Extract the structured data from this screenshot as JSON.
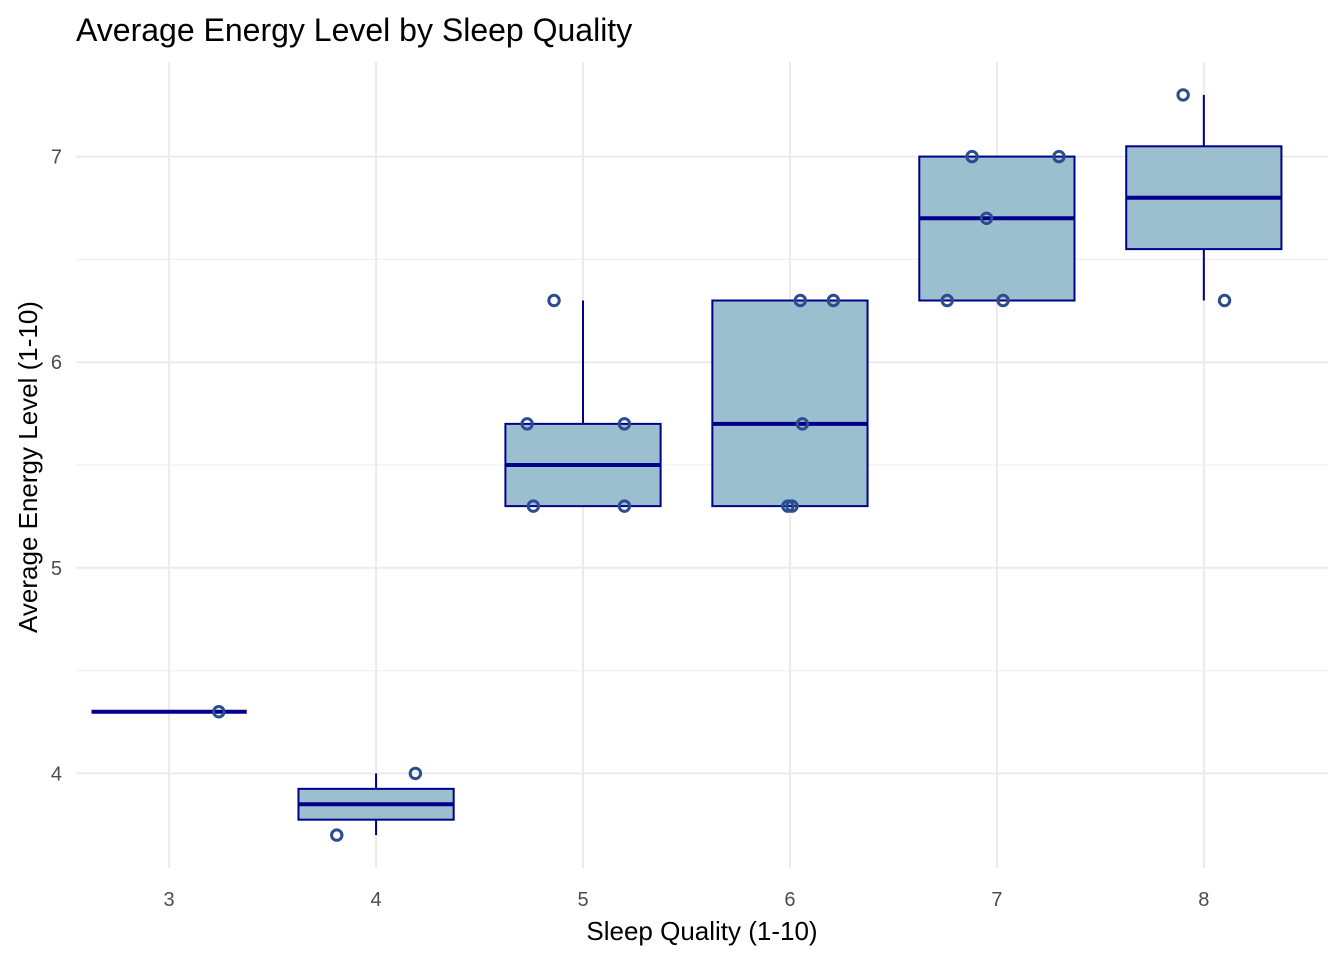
{
  "chart_data": {
    "type": "box",
    "title": "Average Energy Level by Sleep Quality",
    "xlabel": "Sleep Quality (1-10)",
    "ylabel": "Average Energy Level (1-10)",
    "x_ticks": [
      "3",
      "4",
      "5",
      "6",
      "7",
      "8"
    ],
    "y_ticks": [
      "4",
      "5",
      "6",
      "7"
    ],
    "xlim": [
      2.55,
      8.6
    ],
    "ylim": [
      3.54,
      7.46
    ],
    "grid": true,
    "legend": "none",
    "colors": {
      "box_fill": "#9bbfcf",
      "box_line": "#00008b",
      "point": "#2b4d8f"
    },
    "boxes": [
      {
        "x": 3,
        "q1": 4.3,
        "median": 4.3,
        "q3": 4.3,
        "whisker_low": 4.3,
        "whisker_high": 4.3
      },
      {
        "x": 4,
        "q1": 3.775,
        "median": 3.85,
        "q3": 3.925,
        "whisker_low": 3.7,
        "whisker_high": 4.0
      },
      {
        "x": 5,
        "q1": 5.3,
        "median": 5.5,
        "q3": 5.7,
        "whisker_low": 5.3,
        "whisker_high": 6.3
      },
      {
        "x": 6,
        "q1": 5.3,
        "median": 5.7,
        "q3": 6.3,
        "whisker_low": 5.3,
        "whisker_high": 6.3
      },
      {
        "x": 7,
        "q1": 6.3,
        "median": 6.7,
        "q3": 7.0,
        "whisker_low": 6.3,
        "whisker_high": 7.0
      },
      {
        "x": 8,
        "q1": 6.55,
        "median": 6.8,
        "q3": 7.05,
        "whisker_low": 6.3,
        "whisker_high": 7.3
      }
    ],
    "points": [
      {
        "x": 3.24,
        "y": 4.3
      },
      {
        "x": 3.81,
        "y": 3.7
      },
      {
        "x": 4.19,
        "y": 4.0
      },
      {
        "x": 4.86,
        "y": 6.3
      },
      {
        "x": 4.73,
        "y": 5.7
      },
      {
        "x": 5.2,
        "y": 5.7
      },
      {
        "x": 4.76,
        "y": 5.3
      },
      {
        "x": 5.2,
        "y": 5.3
      },
      {
        "x": 6.05,
        "y": 6.3
      },
      {
        "x": 6.21,
        "y": 6.3
      },
      {
        "x": 6.06,
        "y": 5.7
      },
      {
        "x": 5.99,
        "y": 5.3
      },
      {
        "x": 6.01,
        "y": 5.3
      },
      {
        "x": 6.88,
        "y": 7.0
      },
      {
        "x": 7.3,
        "y": 7.0
      },
      {
        "x": 6.95,
        "y": 6.7
      },
      {
        "x": 6.76,
        "y": 6.3
      },
      {
        "x": 7.03,
        "y": 6.3
      },
      {
        "x": 7.9,
        "y": 7.3
      },
      {
        "x": 8.1,
        "y": 6.3
      }
    ]
  }
}
